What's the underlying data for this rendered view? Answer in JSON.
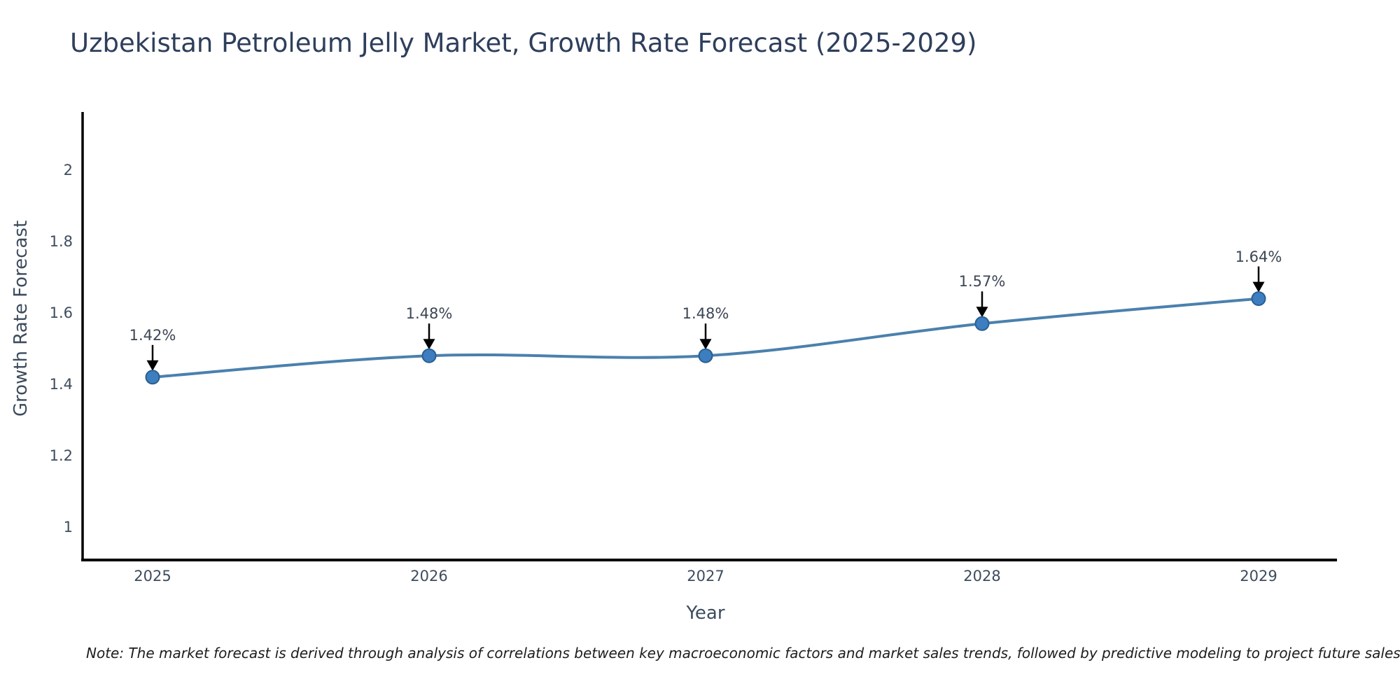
{
  "chart_data": {
    "type": "line",
    "title": "Uzbekistan Petroleum Jelly Market, Growth Rate Forecast (2025-2029)",
    "xlabel": "Year",
    "ylabel": "Growth Rate Forecast",
    "x": [
      2025,
      2026,
      2027,
      2028,
      2029
    ],
    "series": [
      {
        "name": "Growth Rate Forecast",
        "values": [
          1.42,
          1.48,
          1.48,
          1.57,
          1.64
        ]
      }
    ],
    "data_labels": [
      "1.42%",
      "1.48%",
      "1.48%",
      "1.57%",
      "1.64%"
    ],
    "x_tick_labels": [
      "2025",
      "2026",
      "2027",
      "2028",
      "2029"
    ],
    "y_tick_labels": [
      "1",
      "1.2",
      "1.4",
      "1.6",
      "1.8",
      "2"
    ],
    "y_tick_values": [
      1,
      1.2,
      1.4,
      1.6,
      1.8,
      2
    ],
    "ylim": [
      0.9,
      2.16
    ],
    "grid": false,
    "legend_position": "none",
    "marker_style": "circle",
    "annotation_arrow": "down",
    "colors": {
      "line": "#4b80ad",
      "marker_fill": "#3c7ec0",
      "marker_edge": "#2a5f91",
      "axis": "#000000",
      "arrow": "#000000",
      "title_text": "#2e3f5c",
      "tick_text": "#3e4c5e",
      "annotation_text": "#3c4654"
    }
  },
  "note": {
    "text": "Note: The market forecast is derived through analysis of correlations between key macroeconomic factors and market sales trends, followed by predictive modeling to project future sales"
  }
}
